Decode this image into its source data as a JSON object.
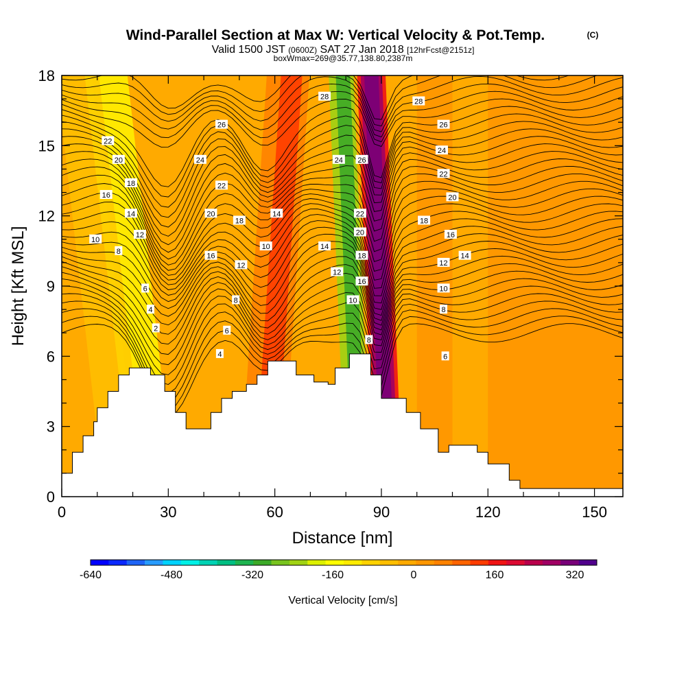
{
  "title": "Wind-Parallel Section at Max W: Vertical Velocity & Pot.Temp.",
  "title_mark": "(C)",
  "subtitle_parts": {
    "a": "Valid 1500 JST",
    "b": "(0600Z)",
    "c": "SAT 27 Jan 2018",
    "d": "[12hrFcst@2151z]"
  },
  "subtitle2": "boxWmax=269@35.77,138.80,2387m",
  "colorbar_label": "Vertical Velocity [cm/s]",
  "chart_data": {
    "type": "heatmap",
    "xlabel": "Distance [nm]",
    "ylabel": "Height [Kft MSL]",
    "xlim": [
      0,
      158
    ],
    "ylim": [
      0,
      18
    ],
    "x_ticks": [
      0,
      30,
      60,
      90,
      120,
      150
    ],
    "y_ticks": [
      0,
      3,
      6,
      9,
      12,
      15,
      18
    ],
    "x_tick_labels": [
      "0",
      "30",
      "60",
      "90",
      "120",
      "150"
    ],
    "y_tick_labels": [
      "0",
      "3",
      "6",
      "9",
      "12",
      "15",
      "18"
    ],
    "terrain": [
      [
        0,
        1
      ],
      [
        3,
        1
      ],
      [
        3,
        1.9
      ],
      [
        6,
        1.9
      ],
      [
        6,
        2.6
      ],
      [
        9,
        2.6
      ],
      [
        9,
        3.2
      ],
      [
        10,
        3.2
      ],
      [
        10,
        3.8
      ],
      [
        13,
        3.8
      ],
      [
        13,
        4.5
      ],
      [
        16,
        4.5
      ],
      [
        16,
        5.2
      ],
      [
        19,
        5.2
      ],
      [
        19,
        5.5
      ],
      [
        25,
        5.5
      ],
      [
        25,
        5.2
      ],
      [
        29,
        5.2
      ],
      [
        29,
        4.5
      ],
      [
        32,
        4.5
      ],
      [
        32,
        3.6
      ],
      [
        35,
        3.6
      ],
      [
        35,
        2.9
      ],
      [
        42,
        2.9
      ],
      [
        42,
        3.6
      ],
      [
        45,
        3.6
      ],
      [
        45,
        4.2
      ],
      [
        48,
        4.2
      ],
      [
        48,
        4.5
      ],
      [
        52,
        4.5
      ],
      [
        52,
        4.8
      ],
      [
        55,
        4.8
      ],
      [
        55,
        5.2
      ],
      [
        58,
        5.2
      ],
      [
        58,
        5.8
      ],
      [
        66,
        5.8
      ],
      [
        66,
        5.2
      ],
      [
        71,
        5.2
      ],
      [
        71,
        4.9
      ],
      [
        75,
        4.9
      ],
      [
        75,
        4.8
      ],
      [
        77,
        4.8
      ],
      [
        77,
        5.5
      ],
      [
        81,
        5.5
      ],
      [
        81,
        6.1
      ],
      [
        87,
        6.1
      ],
      [
        87,
        5.2
      ],
      [
        90,
        5.2
      ],
      [
        90,
        4.2
      ],
      [
        97,
        4.2
      ],
      [
        97,
        3.6
      ],
      [
        101,
        3.6
      ],
      [
        101,
        2.9
      ],
      [
        106,
        2.9
      ],
      [
        106,
        1.9
      ],
      [
        109,
        1.9
      ],
      [
        109,
        2.2
      ],
      [
        117,
        2.2
      ],
      [
        117,
        1.9
      ],
      [
        120,
        1.9
      ],
      [
        120,
        1.4
      ],
      [
        126,
        1.4
      ],
      [
        126,
        0.7
      ],
      [
        129,
        0.7
      ],
      [
        129,
        0.35
      ],
      [
        158,
        0.35
      ]
    ],
    "w_bands": [
      {
        "x": [
          0,
          158
        ],
        "value": 20
      },
      {
        "x": [
          12,
          22
        ],
        "value": -10
      },
      {
        "x": [
          20,
          32
        ],
        "value": -60
      },
      {
        "x": [
          24,
          32
        ],
        "value": -120
      },
      {
        "x": [
          50,
          62
        ],
        "value": 100
      },
      {
        "x": [
          54,
          60
        ],
        "value": 140
      },
      {
        "x": [
          80,
          87
        ],
        "value": -200
      },
      {
        "x": [
          82,
          86
        ],
        "value": -280
      },
      {
        "x": [
          88,
          96
        ],
        "value": 200
      },
      {
        "x": [
          89,
          95
        ],
        "value": 300
      },
      {
        "x": [
          90,
          94
        ],
        "value": 340
      },
      {
        "x": [
          100,
          110
        ],
        "value": 60
      },
      {
        "x": [
          120,
          158
        ],
        "value": 60
      }
    ],
    "contour_labels": [
      {
        "text": "28",
        "x": 74,
        "y": 17.1
      },
      {
        "text": "28",
        "x": 100.5,
        "y": 16.9
      },
      {
        "text": "26",
        "x": 45,
        "y": 15.9
      },
      {
        "text": "26",
        "x": 107.5,
        "y": 15.9
      },
      {
        "text": "22",
        "x": 13,
        "y": 15.2
      },
      {
        "text": "24",
        "x": 39,
        "y": 14.4
      },
      {
        "text": "24",
        "x": 78,
        "y": 14.4
      },
      {
        "text": "26",
        "x": 84.5,
        "y": 14.4
      },
      {
        "text": "24",
        "x": 107,
        "y": 14.8
      },
      {
        "text": "20",
        "x": 16,
        "y": 14.4
      },
      {
        "text": "22",
        "x": 45,
        "y": 13.3
      },
      {
        "text": "22",
        "x": 107.5,
        "y": 13.8
      },
      {
        "text": "18",
        "x": 19.5,
        "y": 13.4
      },
      {
        "text": "16",
        "x": 12.5,
        "y": 12.9
      },
      {
        "text": "20",
        "x": 110,
        "y": 12.8
      },
      {
        "text": "14",
        "x": 19.5,
        "y": 12.1
      },
      {
        "text": "20",
        "x": 42,
        "y": 12.1
      },
      {
        "text": "18",
        "x": 50,
        "y": 11.8
      },
      {
        "text": "14",
        "x": 60.5,
        "y": 12.1
      },
      {
        "text": "22",
        "x": 84,
        "y": 12.1
      },
      {
        "text": "18",
        "x": 102,
        "y": 11.8
      },
      {
        "text": "12",
        "x": 22,
        "y": 11.2
      },
      {
        "text": "20",
        "x": 84,
        "y": 11.3
      },
      {
        "text": "16",
        "x": 109.5,
        "y": 11.2
      },
      {
        "text": "10",
        "x": 9.5,
        "y": 11.0
      },
      {
        "text": "14",
        "x": 74,
        "y": 10.7
      },
      {
        "text": "10",
        "x": 57.5,
        "y": 10.7
      },
      {
        "text": "8",
        "x": 16,
        "y": 10.5
      },
      {
        "text": "16",
        "x": 42,
        "y": 10.3
      },
      {
        "text": "18",
        "x": 84.5,
        "y": 10.3
      },
      {
        "text": "14",
        "x": 113.5,
        "y": 10.3
      },
      {
        "text": "12",
        "x": 50.5,
        "y": 9.9
      },
      {
        "text": "12",
        "x": 107.5,
        "y": 10.0
      },
      {
        "text": "12",
        "x": 77.5,
        "y": 9.6
      },
      {
        "text": "16",
        "x": 84.5,
        "y": 9.2
      },
      {
        "text": "6",
        "x": 23.5,
        "y": 8.9
      },
      {
        "text": "10",
        "x": 107.5,
        "y": 8.9
      },
      {
        "text": "10",
        "x": 82,
        "y": 8.4
      },
      {
        "text": "8",
        "x": 49,
        "y": 8.4
      },
      {
        "text": "4",
        "x": 25,
        "y": 8.0
      },
      {
        "text": "8",
        "x": 107.5,
        "y": 8.0
      },
      {
        "text": "2",
        "x": 26.5,
        "y": 7.2
      },
      {
        "text": "6",
        "x": 46.5,
        "y": 7.1
      },
      {
        "text": "8",
        "x": 86.5,
        "y": 6.7
      },
      {
        "text": "4",
        "x": 44.5,
        "y": 6.1
      },
      {
        "text": "6",
        "x": 108,
        "y": 6.0
      }
    ]
  },
  "colorbar": {
    "ticks": [
      "-640",
      "-480",
      "-320",
      "-160",
      "0",
      "160",
      "320"
    ],
    "colors": [
      "#0000ff",
      "#0a28ff",
      "#1e64f5",
      "#289bff",
      "#00d2ff",
      "#00f0e6",
      "#00d2b4",
      "#00be82",
      "#1eb450",
      "#3caa28",
      "#78c31e",
      "#a0d214",
      "#dcf000",
      "#ffff00",
      "#ffeb00",
      "#ffd200",
      "#ffbe00",
      "#ffaa00",
      "#ff9600",
      "#ff8200",
      "#ff6400",
      "#ff3c00",
      "#f01414",
      "#dc0a32",
      "#b9004b",
      "#a00064",
      "#780078",
      "#50008c"
    ]
  }
}
